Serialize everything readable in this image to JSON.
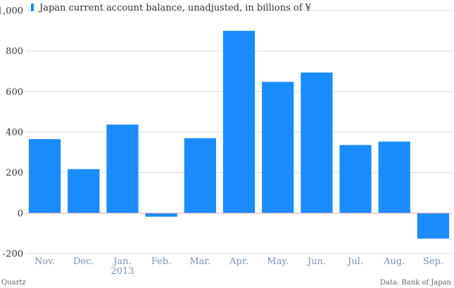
{
  "chart_data": {
    "type": "bar",
    "categories": [
      "Nov.",
      "Dec.",
      "Jan.",
      "Feb.",
      "Mar.",
      "Apr.",
      "May.",
      "Jun.",
      "Jul.",
      "Aug.",
      "Sep."
    ],
    "category_sublabels": [
      "",
      "",
      "2013",
      "",
      "",
      "",
      "",
      "",
      "",
      "",
      ""
    ],
    "series": [
      {
        "name": "Japan current account balance, unadjusted, in billions of ¥",
        "color": "#1a8cff",
        "values": [
          365,
          217,
          437,
          -18,
          370,
          900,
          648,
          694,
          336,
          353,
          -126
        ]
      }
    ],
    "y_ticks": [
      "1,000",
      "800",
      "600",
      "400",
      "200",
      "0",
      "-200"
    ],
    "ylim": [
      -200,
      1000
    ],
    "grid": true,
    "legend_position": "top-left",
    "zero_line_color": "#e8a0b4"
  },
  "footer": {
    "left": "Quartz",
    "right": "Data: Bank of Japan"
  }
}
